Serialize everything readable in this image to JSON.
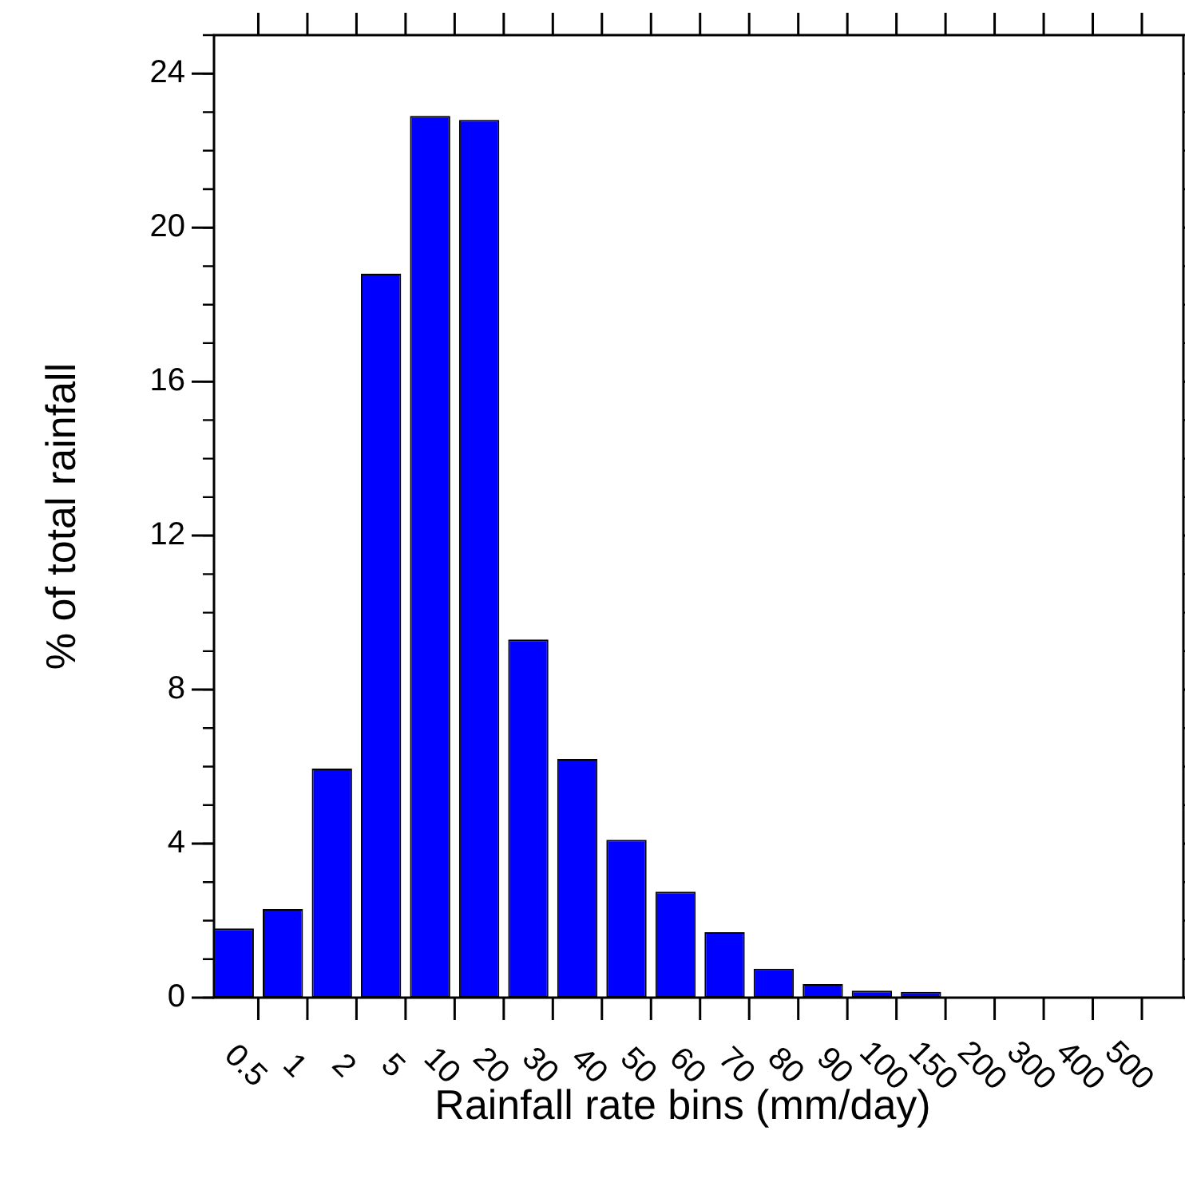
{
  "chart_data": {
    "type": "bar",
    "xlabel": "Rainfall rate bins (mm/day)",
    "ylabel": "% of total rainfall",
    "categories": [
      "0.5",
      "1",
      "2",
      "5",
      "10",
      "20",
      "30",
      "40",
      "50",
      "60",
      "70",
      "80",
      "90",
      "100",
      "150",
      "200",
      "300",
      "400",
      "500"
    ],
    "values": [
      1.8,
      2.3,
      5.95,
      18.8,
      22.9,
      22.8,
      9.3,
      6.2,
      4.1,
      2.75,
      1.7,
      0.75,
      0.35,
      0.18,
      0.15,
      0,
      0,
      0,
      0
    ],
    "color": "#0000ff",
    "ylim": [
      0,
      25
    ],
    "yticks": [
      0,
      4,
      8,
      12,
      16,
      20,
      24
    ]
  }
}
